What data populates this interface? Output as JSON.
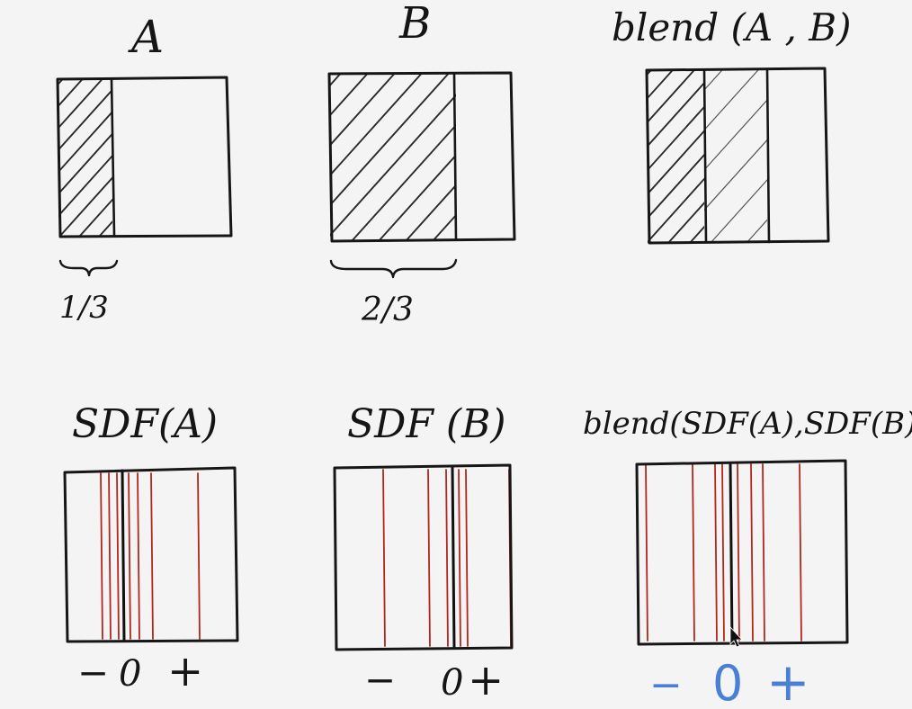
{
  "titles": {
    "a": "A",
    "b": "B",
    "blend_ab": "blend (A , B)",
    "sdf_a": "SDF(A)",
    "sdf_b": "SDF (B)",
    "blend_sdf": "blend(SDF(A),SDF(B)"
  },
  "fractions": {
    "a": "1/3",
    "b": "2/3"
  },
  "sign_labels": {
    "sdf_a": {
      "minus": "−",
      "zero": "0",
      "plus": "+"
    },
    "sdf_b": {
      "minus": "−",
      "zero": "0",
      "plus": "+"
    },
    "blend": {
      "minus": "−",
      "zero": "0",
      "plus": "+"
    }
  },
  "colors": {
    "ink": "#151515",
    "red_isoline": "#b3261e",
    "blue_labels": "#4a7fd6",
    "background": "#f4f4f4"
  },
  "icons": {
    "cursor": "mouse-pointer-icon"
  }
}
